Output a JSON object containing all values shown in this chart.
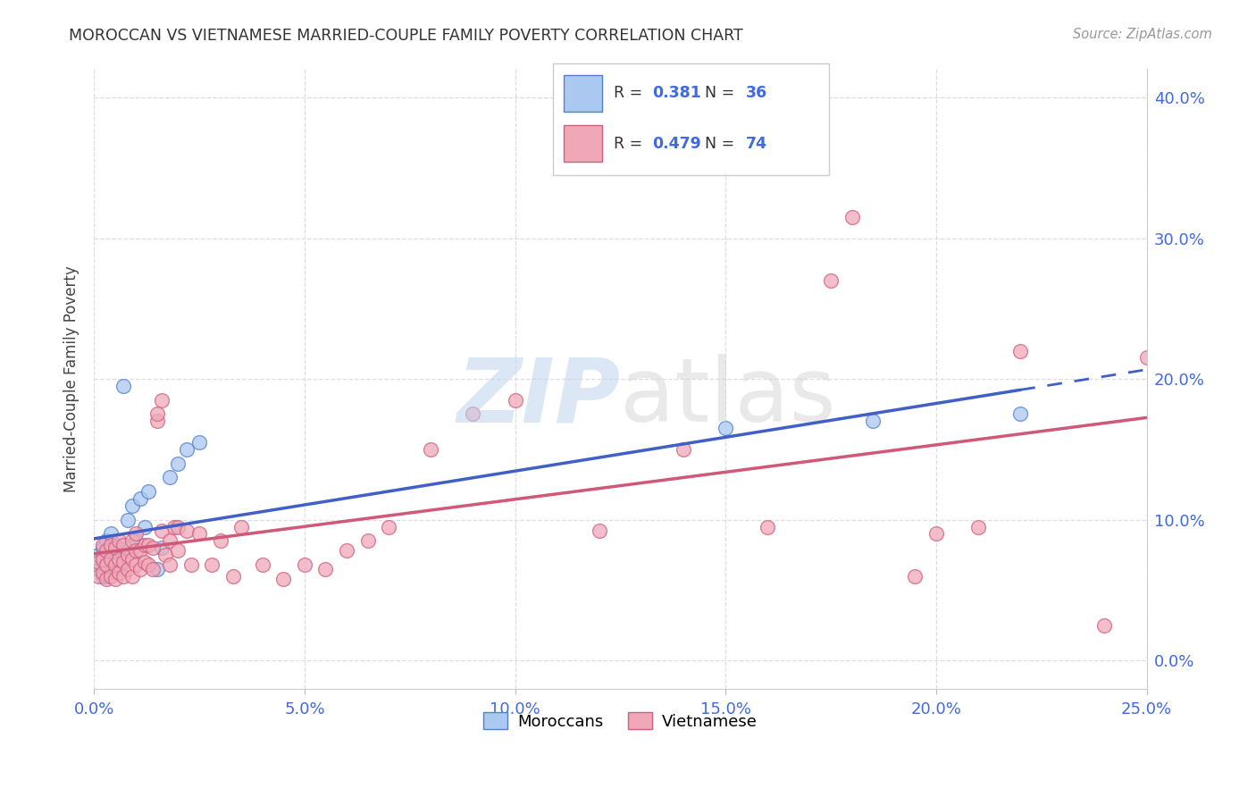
{
  "title": "MOROCCAN VS VIETNAMESE MARRIED-COUPLE FAMILY POVERTY CORRELATION CHART",
  "source": "Source: ZipAtlas.com",
  "ylabel_label": "Married-Couple Family Poverty",
  "moroccan_color": "#aac8f0",
  "vietnamese_color": "#f0a8b8",
  "moroccan_edge_color": "#5080d0",
  "vietnamese_edge_color": "#d06080",
  "moroccan_line_color": "#4060c8",
  "vietnamese_line_color": "#d05878",
  "moroccan_R": "0.381",
  "moroccan_N": "36",
  "vietnamese_R": "0.479",
  "vietnamese_N": "74",
  "xlim": [
    0.0,
    0.25
  ],
  "ylim": [
    -0.02,
    0.42
  ],
  "x_tick_vals": [
    0.0,
    0.05,
    0.1,
    0.15,
    0.2,
    0.25
  ],
  "x_tick_labels": [
    "0.0%",
    "5.0%",
    "10.0%",
    "15.0%",
    "20.0%",
    "25.0%"
  ],
  "y_tick_vals": [
    0.0,
    0.1,
    0.2,
    0.3,
    0.4
  ],
  "y_tick_labels": [
    "0.0%",
    "10.0%",
    "20.0%",
    "30.0%",
    "40.0%"
  ],
  "moroccan_scatter_x": [
    0.001,
    0.001,
    0.002,
    0.002,
    0.002,
    0.003,
    0.003,
    0.003,
    0.003,
    0.004,
    0.004,
    0.004,
    0.004,
    0.005,
    0.005,
    0.005,
    0.006,
    0.006,
    0.007,
    0.007,
    0.008,
    0.008,
    0.009,
    0.01,
    0.011,
    0.012,
    0.013,
    0.015,
    0.016,
    0.018,
    0.02,
    0.022,
    0.025,
    0.15,
    0.185,
    0.22
  ],
  "moroccan_scatter_y": [
    0.065,
    0.075,
    0.06,
    0.07,
    0.08,
    0.06,
    0.068,
    0.075,
    0.085,
    0.062,
    0.07,
    0.078,
    0.09,
    0.065,
    0.072,
    0.082,
    0.068,
    0.078,
    0.195,
    0.075,
    0.1,
    0.08,
    0.11,
    0.085,
    0.115,
    0.095,
    0.12,
    0.065,
    0.08,
    0.13,
    0.14,
    0.15,
    0.155,
    0.165,
    0.17,
    0.175
  ],
  "vietnamese_scatter_x": [
    0.001,
    0.001,
    0.002,
    0.002,
    0.002,
    0.003,
    0.003,
    0.003,
    0.004,
    0.004,
    0.004,
    0.005,
    0.005,
    0.005,
    0.006,
    0.006,
    0.006,
    0.007,
    0.007,
    0.007,
    0.008,
    0.008,
    0.009,
    0.009,
    0.009,
    0.01,
    0.01,
    0.01,
    0.011,
    0.011,
    0.012,
    0.012,
    0.013,
    0.013,
    0.014,
    0.014,
    0.015,
    0.015,
    0.016,
    0.016,
    0.017,
    0.018,
    0.018,
    0.019,
    0.02,
    0.02,
    0.022,
    0.023,
    0.025,
    0.028,
    0.03,
    0.033,
    0.035,
    0.04,
    0.045,
    0.05,
    0.055,
    0.06,
    0.065,
    0.07,
    0.08,
    0.09,
    0.1,
    0.12,
    0.14,
    0.16,
    0.175,
    0.18,
    0.195,
    0.2,
    0.21,
    0.22,
    0.24,
    0.25
  ],
  "vietnamese_scatter_y": [
    0.06,
    0.07,
    0.062,
    0.072,
    0.082,
    0.058,
    0.068,
    0.078,
    0.06,
    0.072,
    0.082,
    0.058,
    0.068,
    0.08,
    0.062,
    0.072,
    0.085,
    0.06,
    0.07,
    0.082,
    0.065,
    0.075,
    0.06,
    0.072,
    0.085,
    0.068,
    0.078,
    0.09,
    0.065,
    0.078,
    0.07,
    0.082,
    0.068,
    0.082,
    0.065,
    0.08,
    0.17,
    0.175,
    0.185,
    0.092,
    0.075,
    0.068,
    0.085,
    0.095,
    0.078,
    0.095,
    0.092,
    0.068,
    0.09,
    0.068,
    0.085,
    0.06,
    0.095,
    0.068,
    0.058,
    0.068,
    0.065,
    0.078,
    0.085,
    0.095,
    0.15,
    0.175,
    0.185,
    0.092,
    0.15,
    0.095,
    0.27,
    0.315,
    0.06,
    0.09,
    0.095,
    0.22,
    0.025,
    0.215
  ],
  "watermark_zip_color": "#c0d4f0",
  "watermark_atlas_color": "#d8d8d8",
  "grid_color": "#dddddd",
  "tick_color": "#4169e1",
  "title_color": "#333333",
  "source_color": "#999999",
  "ylabel_color": "#444444"
}
